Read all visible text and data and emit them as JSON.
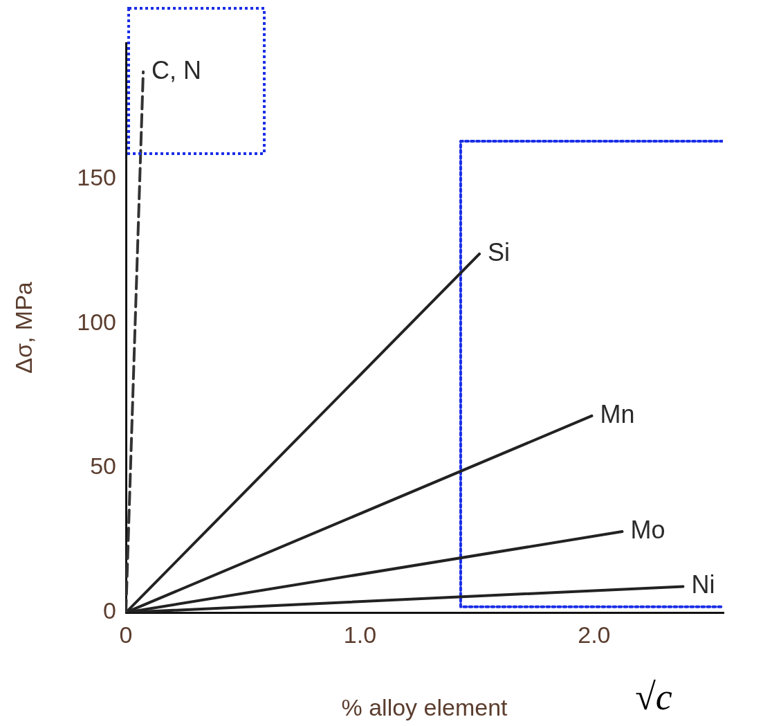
{
  "chart_data": {
    "type": "line",
    "xlabel": "% alloy element",
    "ylabel": "Δσ, MPa",
    "xlim": [
      0,
      2.55
    ],
    "ylim": [
      0,
      197
    ],
    "xticks": [
      0,
      {
        "value": 1,
        "label": "1.0"
      },
      {
        "value": 2,
        "label": "2.0"
      }
    ],
    "yticks": [
      0,
      50,
      100,
      150
    ],
    "grid": false,
    "legend": false,
    "marker": "none",
    "series": [
      {
        "name": "C, N",
        "color": "#333333",
        "x": [
          0,
          0.074
        ],
        "values": [
          0,
          187
        ],
        "line_style": "dashed"
      },
      {
        "name": "Si",
        "color": "#222222",
        "x": [
          0,
          1.51
        ],
        "values": [
          0,
          124
        ]
      },
      {
        "name": "Mn",
        "color": "#222222",
        "x": [
          0,
          1.99
        ],
        "values": [
          0,
          68
        ]
      },
      {
        "name": "Mo",
        "color": "#222222",
        "x": [
          0,
          2.12
        ],
        "values": [
          0,
          28
        ]
      },
      {
        "name": "Ni",
        "color": "#222222",
        "x": [
          0,
          2.38
        ],
        "values": [
          0,
          9
        ]
      },
      {
        "color": "#1a2ee6",
        "x": [
          2.55,
          1.43,
          1.43,
          2.55
        ],
        "values": [
          163,
          163,
          2,
          2
        ],
        "line_style": "dotted"
      }
    ],
    "annotations": [
      "√c"
    ]
  }
}
